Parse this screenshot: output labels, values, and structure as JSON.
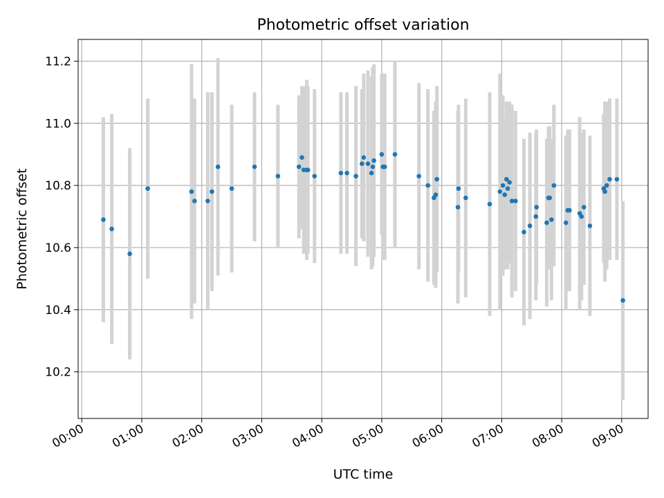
{
  "chart_data": {
    "type": "scatter",
    "title": "Photometric offset variation",
    "xlabel": "UTC time",
    "ylabel": "Photometric offset",
    "x_unit": "hours UTC",
    "xlim": [
      -0.06,
      9.44
    ],
    "ylim": [
      10.05,
      11.27
    ],
    "x_ticks": [
      0,
      1,
      2,
      3,
      4,
      5,
      6,
      7,
      8,
      9
    ],
    "x_tick_labels": [
      "00:00",
      "01:00",
      "02:00",
      "03:00",
      "04:00",
      "05:00",
      "06:00",
      "07:00",
      "08:00",
      "09:00"
    ],
    "y_ticks": [
      10.2,
      10.4,
      10.6,
      10.8,
      11.0,
      11.2
    ],
    "y_tick_labels": [
      "10.2",
      "10.4",
      "10.6",
      "10.8",
      "11.0",
      "11.2"
    ],
    "grid": true,
    "colors": {
      "point": "#1f77b4",
      "errorbar": "#d3d3d3",
      "grid": "#b0b0b0",
      "axis": "#000000"
    },
    "series": [
      {
        "name": "offset",
        "x": [
          0.36,
          0.5,
          0.8,
          1.1,
          1.83,
          1.88,
          2.1,
          2.17,
          2.27,
          2.5,
          2.88,
          3.27,
          3.62,
          3.67,
          3.7,
          3.75,
          3.77,
          3.88,
          4.32,
          4.42,
          4.57,
          4.67,
          4.7,
          4.77,
          4.83,
          4.85,
          4.87,
          5.0,
          5.02,
          5.05,
          5.22,
          5.62,
          5.77,
          5.87,
          5.9,
          5.92,
          6.27,
          6.28,
          6.4,
          6.8,
          6.97,
          7.02,
          7.05,
          7.08,
          7.1,
          7.13,
          7.17,
          7.23,
          7.37,
          7.47,
          7.57,
          7.58,
          7.75,
          7.78,
          7.8,
          7.83,
          7.87,
          8.07,
          8.1,
          8.13,
          8.3,
          8.33,
          8.37,
          8.47,
          8.7,
          8.72,
          8.75,
          8.8,
          8.92,
          9.02
        ],
        "y": [
          10.69,
          10.66,
          10.58,
          10.79,
          10.78,
          10.75,
          10.75,
          10.78,
          10.86,
          10.79,
          10.86,
          10.83,
          10.86,
          10.89,
          10.85,
          10.85,
          10.85,
          10.83,
          10.84,
          10.84,
          10.83,
          10.87,
          10.89,
          10.87,
          10.84,
          10.86,
          10.88,
          10.9,
          10.86,
          10.86,
          10.9,
          10.83,
          10.8,
          10.76,
          10.77,
          10.82,
          10.73,
          10.79,
          10.76,
          10.74,
          10.78,
          10.8,
          10.77,
          10.82,
          10.79,
          10.81,
          10.75,
          10.75,
          10.65,
          10.67,
          10.7,
          10.73,
          10.68,
          10.76,
          10.76,
          10.69,
          10.8,
          10.68,
          10.72,
          10.72,
          10.71,
          10.7,
          10.73,
          10.67,
          10.79,
          10.78,
          10.8,
          10.82,
          10.82,
          10.43
        ],
        "err": [
          0.33,
          0.37,
          0.34,
          0.29,
          0.41,
          0.33,
          0.35,
          0.32,
          0.35,
          0.27,
          0.24,
          0.23,
          0.23,
          0.23,
          0.27,
          0.29,
          0.27,
          0.28,
          0.26,
          0.26,
          0.29,
          0.24,
          0.27,
          0.3,
          0.31,
          0.32,
          0.31,
          0.26,
          0.3,
          0.3,
          0.3,
          0.3,
          0.31,
          0.28,
          0.3,
          0.3,
          0.31,
          0.27,
          0.32,
          0.36,
          0.38,
          0.29,
          0.24,
          0.25,
          0.26,
          0.26,
          0.31,
          0.29,
          0.3,
          0.3,
          0.27,
          0.25,
          0.27,
          0.23,
          0.23,
          0.26,
          0.26,
          0.28,
          0.26,
          0.26,
          0.31,
          0.27,
          0.25,
          0.29,
          0.24,
          0.29,
          0.27,
          0.26,
          0.26,
          0.32
        ]
      }
    ]
  }
}
